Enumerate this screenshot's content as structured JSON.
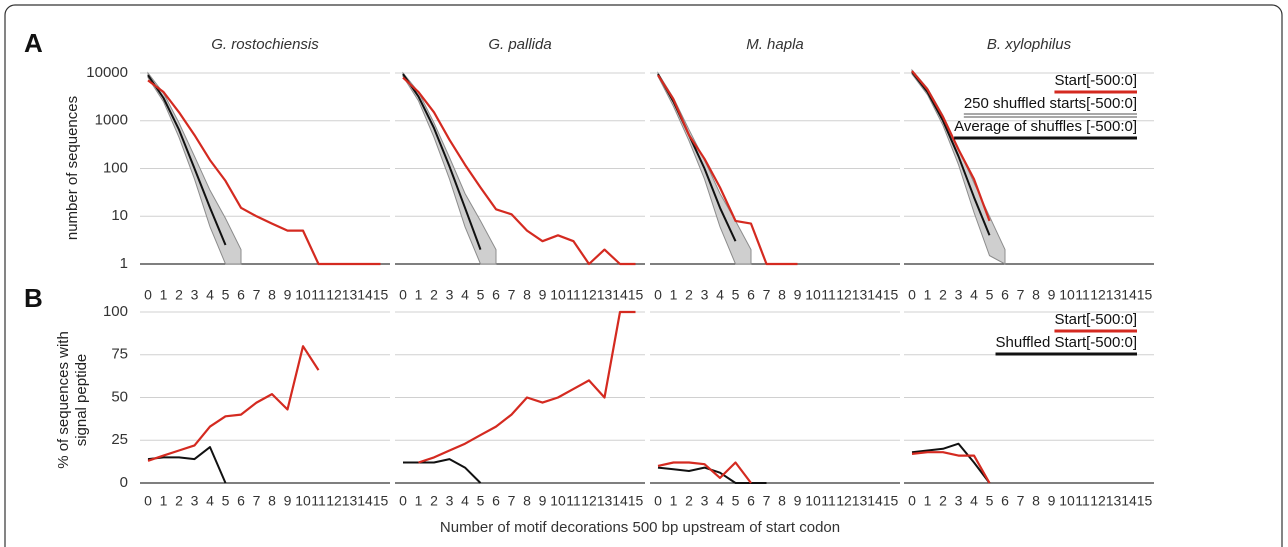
{
  "chart_data": [
    {
      "type": "line",
      "label": "A",
      "log_scale": true,
      "grid": true,
      "legend": "upper right",
      "ylabel": "number of sequences",
      "categories": [
        0,
        1,
        2,
        3,
        4,
        5,
        6,
        7,
        8,
        9,
        10,
        11,
        12,
        13,
        14,
        15
      ],
      "ylim": [
        1,
        10000
      ],
      "yticks": [
        1,
        10,
        100,
        1000,
        10000
      ],
      "series": [
        {
          "name": "Start[-500:0]",
          "color": "#d42a20"
        },
        {
          "name": "250 shuffled starts[-500:0]",
          "color": "#8c8c8c"
        },
        {
          "name": "Average of shuffles [-500:0]",
          "color": "#111111"
        }
      ],
      "panels": [
        {
          "title": "G. rostochiensis",
          "series": [
            {
              "values": [
                7000,
                4000,
                1500,
                500,
                150,
                55,
                15,
                10,
                7,
                5,
                5,
                1,
                1,
                1,
                1,
                1
              ]
            },
            {
              "high": [
                10000,
                3800,
                900,
                180,
                35,
                9,
                2,
                null,
                null,
                null,
                null,
                null,
                null,
                null,
                null,
                null
              ],
              "low": [
                8000,
                2500,
                450,
                60,
                6,
                1,
                1,
                null,
                null,
                null,
                null,
                null,
                null,
                null,
                null,
                null
              ]
            },
            {
              "values": [
                9000,
                3000,
                650,
                100,
                15,
                2.5,
                null,
                null,
                null,
                null,
                null,
                null,
                null,
                null,
                null,
                null
              ]
            }
          ]
        },
        {
          "title": "G. pallida",
          "series": [
            {
              "values": [
                8000,
                4000,
                1500,
                400,
                120,
                40,
                14,
                11,
                5,
                3,
                4,
                3,
                1,
                2,
                1,
                1
              ]
            },
            {
              "high": [
                10000,
                4000,
                900,
                170,
                30,
                8,
                2,
                null,
                null,
                null,
                null,
                null,
                null,
                null,
                null,
                null
              ],
              "low": [
                8500,
                2600,
                450,
                60,
                6,
                1,
                1,
                null,
                null,
                null,
                null,
                null,
                null,
                null,
                null,
                null
              ]
            },
            {
              "values": [
                9500,
                3200,
                700,
                110,
                15,
                2,
                null,
                null,
                null,
                null,
                null,
                null,
                null,
                null,
                null,
                null
              ]
            }
          ]
        },
        {
          "title": "M. hapla",
          "series": [
            {
              "values": [
                9000,
                2800,
                500,
                160,
                40,
                8,
                7,
                1,
                1,
                1,
                null,
                null,
                null,
                null,
                null,
                null
              ]
            },
            {
              "high": [
                10000,
                3000,
                650,
                150,
                30,
                8,
                2,
                null,
                null,
                null,
                null,
                null,
                null,
                null,
                null,
                null
              ],
              "low": [
                8500,
                2000,
                380,
                60,
                6,
                1,
                1,
                null,
                null,
                null,
                null,
                null,
                null,
                null,
                null,
                null
              ]
            },
            {
              "values": [
                9500,
                2500,
                500,
                100,
                15,
                3,
                null,
                null,
                null,
                null,
                null,
                null,
                null,
                null,
                null,
                null
              ]
            }
          ]
        },
        {
          "title": "B. xylophilus",
          "series": [
            {
              "values": [
                11000,
                4500,
                1200,
                250,
                60,
                8,
                null,
                null,
                null,
                null,
                null,
                null,
                null,
                null,
                null,
                null
              ]
            },
            {
              "high": [
                11500,
                4800,
                1300,
                260,
                50,
                10,
                2,
                null,
                null,
                null,
                null,
                null,
                null,
                null,
                null,
                null
              ],
              "low": [
                9500,
                3500,
                800,
                120,
                12,
                1.5,
                1,
                null,
                null,
                null,
                null,
                null,
                null,
                null,
                null,
                null
              ]
            },
            {
              "values": [
                10500,
                4000,
                1000,
                180,
                25,
                4,
                null,
                null,
                null,
                null,
                null,
                null,
                null,
                null,
                null,
                null
              ]
            }
          ]
        }
      ]
    },
    {
      "type": "line",
      "label": "B",
      "grid": true,
      "legend": "upper right",
      "ylabel": "% of sequences with signal peptide",
      "xlabel": "Number of motif decorations 500 bp upstream of start codon",
      "categories": [
        0,
        1,
        2,
        3,
        4,
        5,
        6,
        7,
        8,
        9,
        10,
        11,
        12,
        13,
        14,
        15
      ],
      "ylim": [
        0,
        100
      ],
      "yticks": [
        0,
        25,
        50,
        75,
        100
      ],
      "series": [
        {
          "name": "Start[-500:0]",
          "color": "#d42a20"
        },
        {
          "name": "Shuffled Start[-500:0]",
          "color": "#111111"
        }
      ],
      "panels": [
        {
          "series": [
            {
              "values": [
                13,
                16,
                19,
                22,
                33,
                39,
                40,
                47,
                52,
                43,
                80,
                66,
                null,
                null,
                null,
                null
              ]
            },
            {
              "values": [
                14,
                15,
                15,
                14,
                21,
                0,
                null,
                null,
                null,
                null,
                null,
                null,
                null,
                null,
                null,
                null
              ]
            }
          ]
        },
        {
          "series": [
            {
              "values": [
                null,
                12,
                15,
                19,
                23,
                28,
                33,
                40,
                50,
                47,
                50,
                55,
                60,
                50,
                100,
                100
              ]
            },
            {
              "values": [
                12,
                12,
                12,
                14,
                9,
                0,
                null,
                null,
                null,
                null,
                null,
                null,
                null,
                null,
                null,
                null
              ]
            }
          ]
        },
        {
          "series": [
            {
              "values": [
                10,
                12,
                12,
                11,
                3,
                12,
                0,
                null,
                null,
                null,
                null,
                null,
                null,
                null,
                null,
                null
              ]
            },
            {
              "values": [
                9,
                8,
                7,
                9,
                6,
                0,
                0,
                0,
                null,
                null,
                null,
                null,
                null,
                null,
                null,
                null
              ]
            }
          ]
        },
        {
          "series": [
            {
              "values": [
                17,
                18,
                18,
                16,
                16,
                0,
                null,
                null,
                null,
                null,
                null,
                null,
                null,
                null,
                null,
                null
              ]
            },
            {
              "values": [
                18,
                19,
                20,
                23,
                12,
                0,
                null,
                null,
                null,
                null,
                null,
                null,
                null,
                null,
                null,
                null
              ]
            }
          ]
        }
      ]
    }
  ]
}
